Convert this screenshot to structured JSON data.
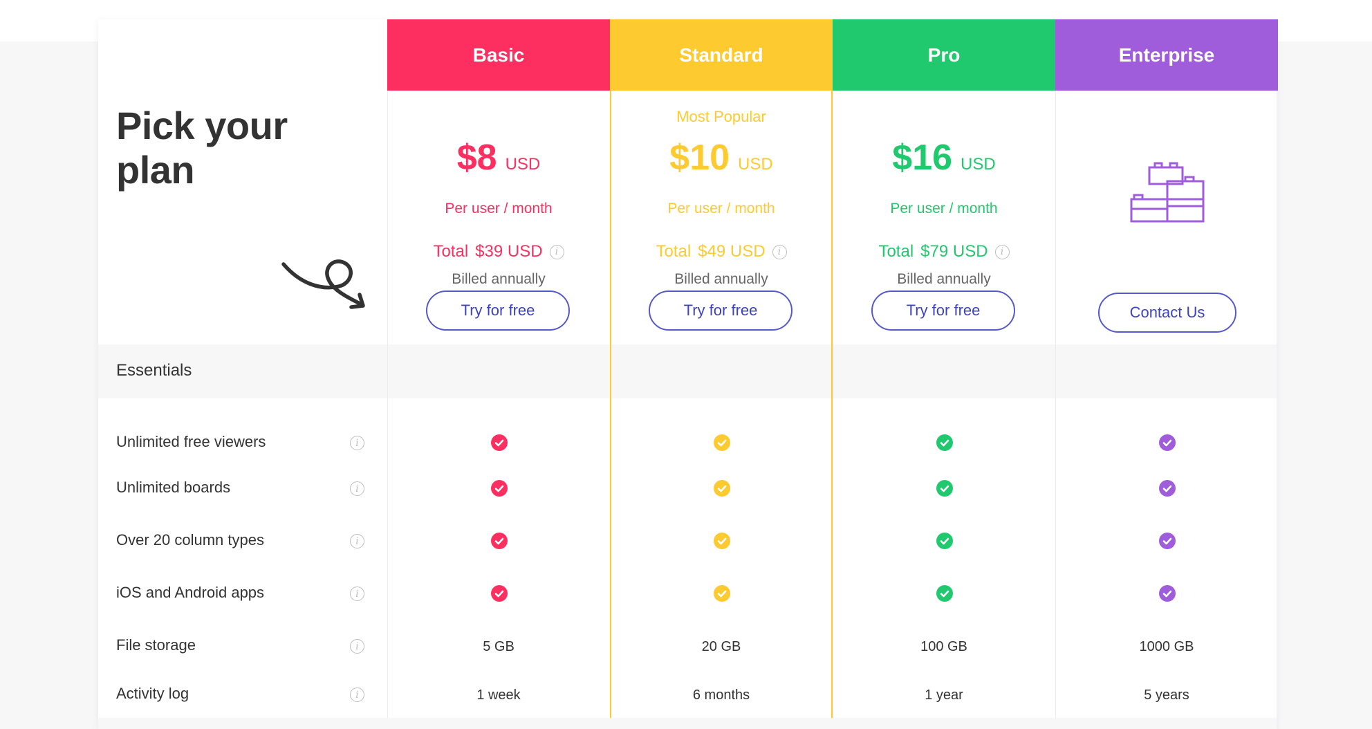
{
  "title_line1": "Pick your",
  "title_line2": "plan",
  "section": "Essentials",
  "features": [
    {
      "label": "Unlimited free viewers",
      "type": "check"
    },
    {
      "label": "Unlimited boards",
      "type": "check"
    },
    {
      "label": "Over 20 column types",
      "type": "check"
    },
    {
      "label": "iOS and Android apps",
      "type": "check"
    },
    {
      "label": "File storage",
      "type": "text",
      "values": [
        "5 GB",
        "20 GB",
        "100 GB",
        "1000 GB"
      ]
    },
    {
      "label": "Activity log",
      "type": "text",
      "values": [
        "1 week",
        "6 months",
        "1 year",
        "5 years"
      ]
    }
  ],
  "plans": [
    {
      "name": "Basic",
      "color": "#fc2f60",
      "price": "$8",
      "unit": "USD",
      "per": "Per user / month",
      "total_label": "Total",
      "total": "$39 USD",
      "billed": "Billed annually",
      "cta": "Try for free"
    },
    {
      "name": "Standard",
      "color": "#fdcb2f",
      "popular": "Most Popular",
      "price": "$10",
      "unit": "USD",
      "per": "Per user / month",
      "total_label": "Total",
      "total": "$49 USD",
      "billed": "Billed annually",
      "cta": "Try for free"
    },
    {
      "name": "Pro",
      "color": "#20c96d",
      "price": "$16",
      "unit": "USD",
      "per": "Per user / month",
      "total_label": "Total",
      "total": "$79 USD",
      "billed": "Billed annually",
      "cta": "Try for free"
    },
    {
      "name": "Enterprise",
      "color": "#a05ddb",
      "icon": "lego-blocks-icon",
      "cta": "Contact Us"
    }
  ]
}
